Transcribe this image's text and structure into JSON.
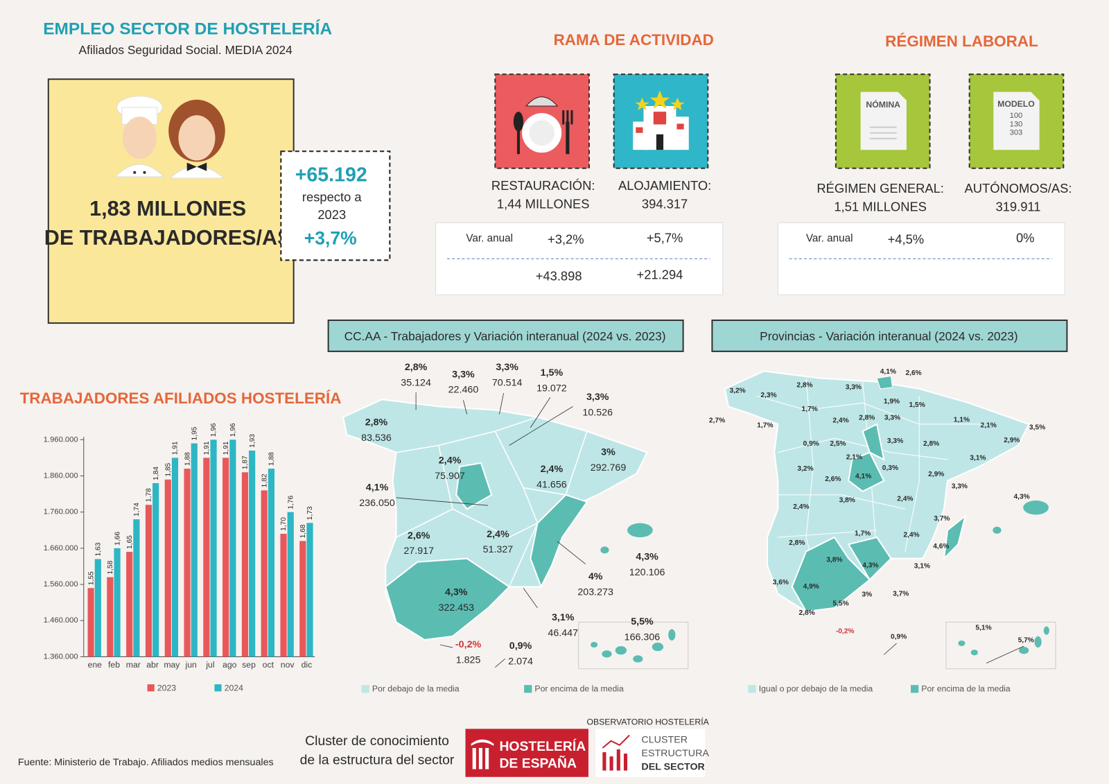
{
  "header": {
    "title": "EMPLEO SECTOR DE HOSTELERÍA",
    "subtitle": "Afiliados Seguridad Social. MEDIA 2024"
  },
  "summary": {
    "line1": "1,83 MILLONES",
    "line2": "DE TRABAJADORES/AS",
    "change": "+65.192",
    "respecto": "respecto a",
    "year": "2023",
    "pct": "+3,7%"
  },
  "rama": {
    "title": "RAMA DE ACTIVIDAD",
    "var_label": "Var. anual",
    "items": [
      {
        "label": "RESTAURACIÓN:",
        "value": "1,44 MILLONES",
        "var": "+3,2%",
        "abs": "+43.898"
      },
      {
        "label": "ALOJAMIENTO:",
        "value": "394.317",
        "var": "+5,7%",
        "abs": "+21.294"
      }
    ]
  },
  "regimen": {
    "title": "RÉGIMEN LABORAL",
    "var_label": "Var. anual",
    "icon1": "NÓMINA",
    "icon2": [
      "MODELO",
      "100",
      "130",
      "303"
    ],
    "items": [
      {
        "label": "RÉGIMEN GENERAL:",
        "value": "1,51 MILLONES",
        "var": "+4,5%"
      },
      {
        "label": "AUTÓNOMOS/AS:",
        "value": "319.911",
        "var": "0%"
      }
    ]
  },
  "chart_data": {
    "type": "bar",
    "title": "TRABAJADORES AFILIADOS HOSTELERÍA",
    "categories": [
      "ene",
      "feb",
      "mar",
      "abr",
      "may",
      "jun",
      "jul",
      "ago",
      "sep",
      "oct",
      "nov",
      "dic"
    ],
    "series": [
      {
        "name": "2023",
        "color": "#e8585a",
        "values": [
          1550000,
          1580000,
          1650000,
          1780000,
          1850000,
          1880000,
          1910000,
          1910000,
          1870000,
          1820000,
          1700000,
          1680000
        ],
        "value_labels": [
          "1,55",
          "1,58",
          "1,65",
          "1,78",
          "1,85",
          "1,88",
          "1,91",
          "1,91",
          "1,87",
          "1,82",
          "1,70",
          "1,68"
        ]
      },
      {
        "name": "2024",
        "color": "#2db6c3",
        "values": [
          1630000,
          1660000,
          1740000,
          1840000,
          1910000,
          1950000,
          1960000,
          1960000,
          1930000,
          1880000,
          1760000,
          1730000
        ],
        "value_labels": [
          "1,63",
          "1,66",
          "1,74",
          "1,84",
          "1,91",
          "1,95",
          "1,96",
          "1,96",
          "1,93",
          "1,88",
          "1,76",
          "1,73"
        ]
      }
    ],
    "ylim": [
      1360000,
      1960000
    ],
    "yticks": [
      {
        "value": 1360000,
        "label": "1.360.000"
      },
      {
        "value": 1460000,
        "label": "1.460.000"
      },
      {
        "value": 1560000,
        "label": "1.560.000"
      },
      {
        "value": 1660000,
        "label": "1.660.000"
      },
      {
        "value": 1760000,
        "label": "1.760.000"
      },
      {
        "value": 1860000,
        "label": "1.860.000"
      },
      {
        "value": 1960000,
        "label": "1.960.000"
      }
    ],
    "grid": false
  },
  "ccaa_map": {
    "title": "CC.AA - Trabajadores y Variación interanual (2024 vs. 2023)",
    "legend": [
      "Por debajo de la media",
      "Por encima de la media"
    ],
    "regions": [
      {
        "pct": "2,8%",
        "workers": "35.124"
      },
      {
        "pct": "3,3%",
        "workers": "22.460"
      },
      {
        "pct": "3,3%",
        "workers": "70.514"
      },
      {
        "pct": "1,5%",
        "workers": "19.072"
      },
      {
        "pct": "3,3%",
        "workers": "10.526"
      },
      {
        "pct": "2,8%",
        "workers": "83.536"
      },
      {
        "pct": "2,4%",
        "workers": "75.907"
      },
      {
        "pct": "2,4%",
        "workers": "41.656"
      },
      {
        "pct": "3%",
        "workers": "292.769"
      },
      {
        "pct": "4,1%",
        "workers": "236.050"
      },
      {
        "pct": "2,6%",
        "workers": "27.917"
      },
      {
        "pct": "2,4%",
        "workers": "51.327"
      },
      {
        "pct": "4,3%",
        "workers": "322.453"
      },
      {
        "pct": "4%",
        "workers": "203.273"
      },
      {
        "pct": "4,3%",
        "workers": "120.106"
      },
      {
        "pct": "3,1%",
        "workers": "46.447"
      },
      {
        "pct": "5,5%",
        "workers": "166.306"
      },
      {
        "pct": "-0,2%",
        "workers": "1.825"
      },
      {
        "pct": "0,9%",
        "workers": "2.074"
      }
    ]
  },
  "prov_map": {
    "title": "Provincias - Variación interanual (2024 vs. 2023)",
    "legend": [
      "Igual o por debajo de la media",
      "Por encima de la media"
    ],
    "labels": [
      "4,1%",
      "2,6%",
      "3,2%",
      "2,3%",
      "2,8%",
      "3,3%",
      "1,9%",
      "1,5%",
      "2,7%",
      "1,7%",
      "1,7%",
      "2,4%",
      "2,8%",
      "3,3%",
      "1,1%",
      "2,1%",
      "3,5%",
      "0,9%",
      "2,5%",
      "3,3%",
      "2,8%",
      "2,9%",
      "2,1%",
      "3,1%",
      "3,2%",
      "2,6%",
      "4,1%",
      "0,3%",
      "2,9%",
      "3,3%",
      "4,3%",
      "2,4%",
      "3,8%",
      "2,4%",
      "3,7%",
      "1,7%",
      "2,4%",
      "2,8%",
      "4,6%",
      "3,8%",
      "4,3%",
      "3,1%",
      "3,6%",
      "4,9%",
      "3%",
      "3,7%",
      "5,5%",
      "2,8%",
      "-0,2%",
      "0,9%",
      "5,1%",
      "5,7%"
    ]
  },
  "footer": {
    "source": "Fuente: Ministerio de Trabajo. Afiliados medios mensuales",
    "cluster": [
      "Cluster de conocimiento",
      "de la estructura del sector"
    ],
    "logo1": [
      "HOSTELERÍA",
      "DE ESPAÑA"
    ],
    "observatorio": "OBSERVATORIO HOSTELERÍA",
    "logo2": [
      "CLUSTER",
      "ESTRUCTURA",
      "DEL SECTOR"
    ]
  }
}
